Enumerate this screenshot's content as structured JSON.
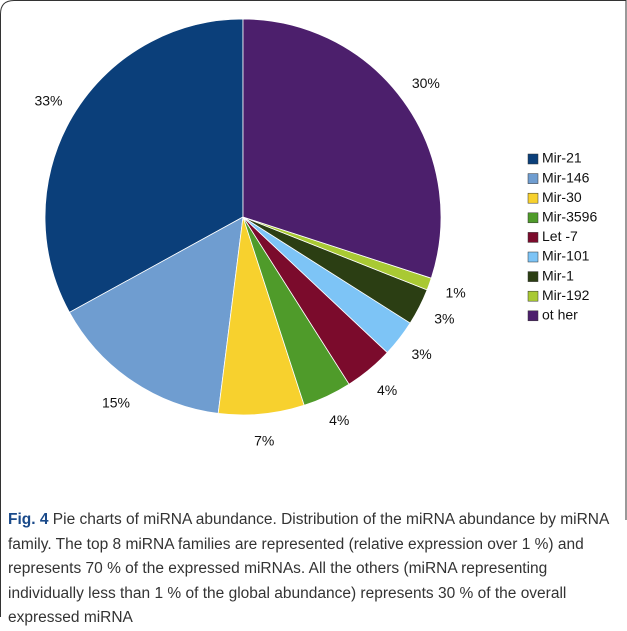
{
  "chart_data": {
    "type": "pie",
    "categories": [
      "Mir-21",
      "Mir-146",
      "Mir-30",
      "Mir-3596",
      "Let -7",
      "Mir-101",
      "Mir-1",
      "Mir-192",
      "ot her"
    ],
    "values": [
      33,
      15,
      7,
      4,
      4,
      3,
      3,
      1,
      30
    ],
    "value_labels": [
      "33%",
      "15%",
      "7%",
      "4%",
      "4%",
      "3%",
      "3%",
      "1%",
      "30%"
    ],
    "colors": [
      "#0b3f7a",
      "#6f9dd0",
      "#f7d12e",
      "#4f9b2a",
      "#7b0b2c",
      "#7dc4f6",
      "#2b3e13",
      "#a9c933",
      "#4c1f6c"
    ],
    "legend": "right"
  },
  "caption": {
    "label": "Fig. 4",
    "text": "Pie charts of miRNA abundance. Distribution of the miRNA abundance by miRNA family. The top 8 miRNA families are represented (relative expression over 1 %) and represents 70 % of the expressed miRNAs. All the others (miRNA representing individually less than 1 % of the global abundance) represents 30 % of the overall expressed miRNA"
  }
}
